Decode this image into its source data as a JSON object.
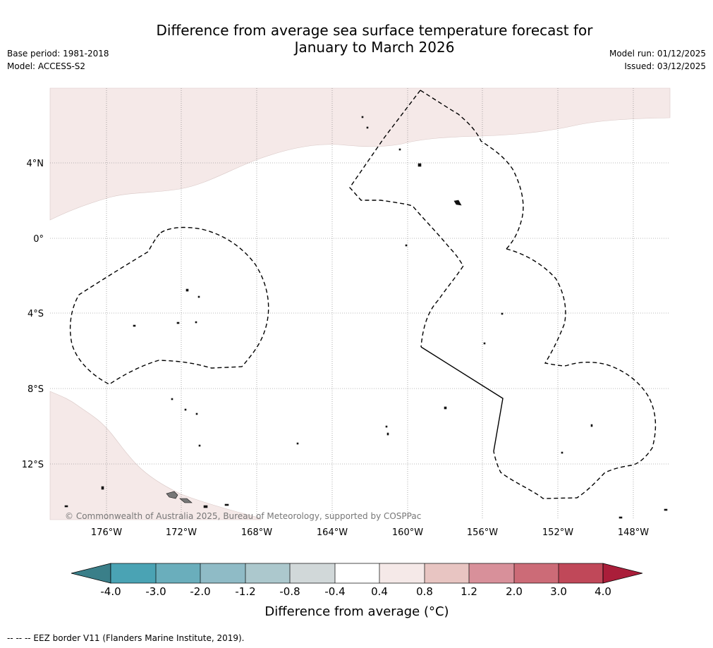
{
  "title": {
    "line1": "Difference from average sea surface temperature forecast for",
    "line2": "January to March 2026"
  },
  "meta": {
    "base_period": "Base period: 1981-2018",
    "model": "Model: ACCESS-S2",
    "model_run": "Model run: 01/12/2025",
    "issued": "Issued: 03/12/2025"
  },
  "map": {
    "lat_labels": [
      "4°N",
      "0°",
      "4°S",
      "8°S",
      "12°S"
    ],
    "lon_labels": [
      "176°W",
      "172°W",
      "168°W",
      "164°W",
      "160°W",
      "156°W",
      "152°W",
      "148°W"
    ],
    "copyright": "© Commonwealth of Australia 2025, Bureau of Meteorology, supported by COSPPac"
  },
  "legend": {
    "title": "Difference from average (°C)",
    "tick_labels": [
      "-4.0",
      "-3.0",
      "-2.0",
      "-1.2",
      "-0.8",
      "-0.4",
      "0.4",
      "0.8",
      "1.2",
      "2.0",
      "3.0",
      "4.0"
    ],
    "colors": [
      "#3a7f89",
      "#4aa3b4",
      "#6aaebc",
      "#8fbbc6",
      "#acc8cd",
      "#d1d8d9",
      "#ffffff",
      "#f5e9e8",
      "#e8c5c2",
      "#d8909a",
      "#cc6b77",
      "#c04859",
      "#aa1e3a"
    ],
    "anomaly_fill": "#f5e9e8",
    "eez_note": "--  --  -- EEZ border V11 (Flanders Marine Institute, 2019)."
  }
}
